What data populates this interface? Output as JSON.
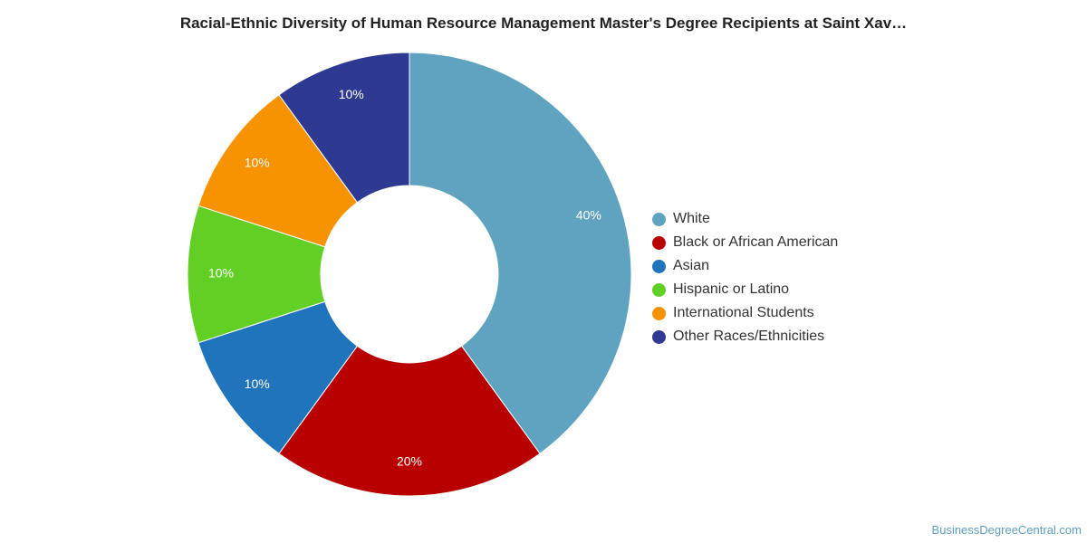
{
  "chart_data": {
    "type": "pie",
    "variant": "donut",
    "title": "Racial-Ethnic Diversity of Human Resource Management Master's Degree Recipients at Saint Xav…",
    "categories": [
      "White",
      "Black or African American",
      "Asian",
      "Hispanic or Latino",
      "International Students",
      "Other Races/Ethnicities"
    ],
    "values": [
      40,
      20,
      10,
      10,
      10,
      10
    ],
    "labels": [
      "40%",
      "20%",
      "10%",
      "10%",
      "10%",
      "10%"
    ],
    "colors": [
      "#5fa3c1",
      "#b80000",
      "#1f74bb",
      "#62cf25",
      "#f79300",
      "#2e3a92"
    ],
    "legend_position": "right"
  },
  "credit": "BusinessDegreeCentral.com"
}
